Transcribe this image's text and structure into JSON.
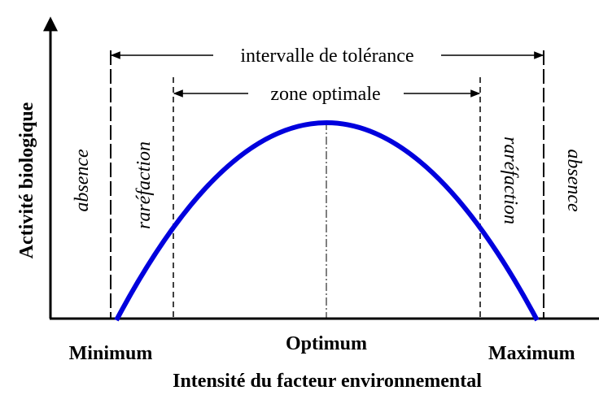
{
  "y_axis_label": "Activité biologique",
  "x_axis_label": "Intensité du facteur environnemental",
  "ranges": {
    "tolerance": "intervalle de tolérance",
    "optimal": "zone optimale"
  },
  "zones": [
    "absence",
    "raréfaction",
    "raréfaction",
    "absence"
  ],
  "x_points": {
    "minimum": "Minimum",
    "optimum": "Optimum",
    "maximum": "Maximum"
  }
}
